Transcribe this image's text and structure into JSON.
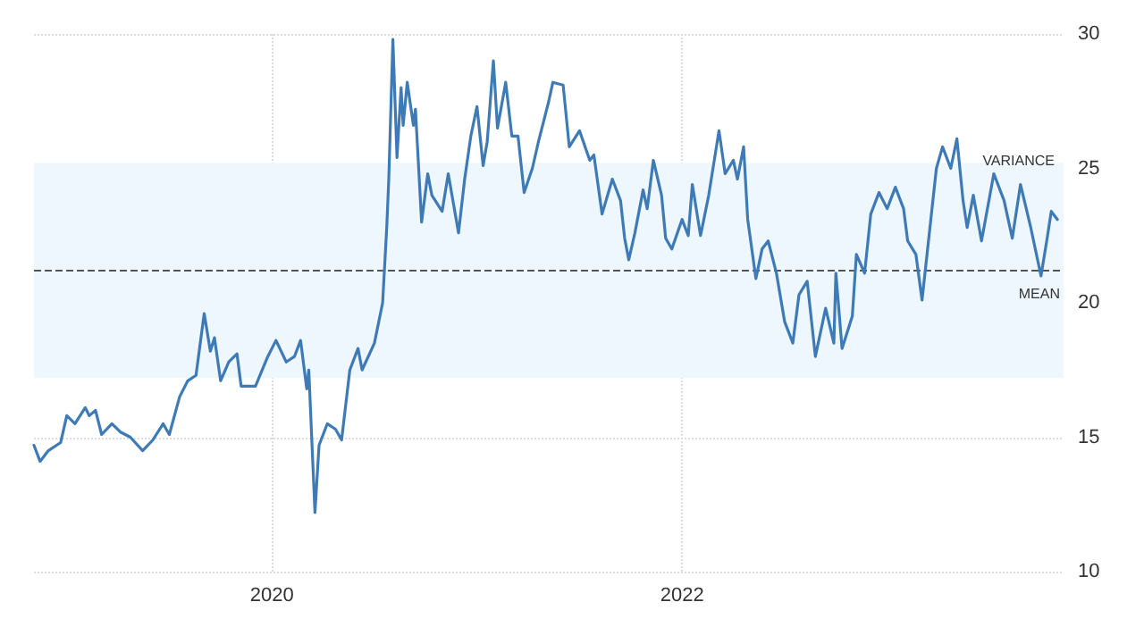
{
  "chart_data": {
    "type": "line",
    "x": [
      2018.84,
      2018.87,
      2018.91,
      2018.97,
      2019.0,
      2019.04,
      2019.09,
      2019.11,
      2019.14,
      2019.17,
      2019.22,
      2019.26,
      2019.31,
      2019.37,
      2019.42,
      2019.47,
      2019.5,
      2019.55,
      2019.59,
      2019.63,
      2019.67,
      2019.7,
      2019.72,
      2019.75,
      2019.79,
      2019.83,
      2019.85,
      2019.92,
      2019.98,
      2020.02,
      2020.07,
      2020.11,
      2020.14,
      2020.17,
      2020.18,
      2020.21,
      2020.23,
      2020.27,
      2020.31,
      2020.34,
      2020.38,
      2020.42,
      2020.44,
      2020.5,
      2020.54,
      2020.56,
      2020.57,
      2020.59,
      2020.61,
      2020.63,
      2020.64,
      2020.66,
      2020.69,
      2020.7,
      2020.73,
      2020.76,
      2020.78,
      2020.83,
      2020.86,
      2020.91,
      2020.94,
      2020.97,
      2021.0,
      2021.03,
      2021.05,
      2021.08,
      2021.1,
      2021.14,
      2021.17,
      2021.2,
      2021.23,
      2021.27,
      2021.3,
      2021.35,
      2021.37,
      2021.42,
      2021.45,
      2021.5,
      2021.55,
      2021.57,
      2021.61,
      2021.66,
      2021.7,
      2021.72,
      2021.74,
      2021.77,
      2021.81,
      2021.83,
      2021.86,
      2021.9,
      2021.92,
      2021.95,
      2022.0,
      2022.03,
      2022.05,
      2022.09,
      2022.13,
      2022.18,
      2022.21,
      2022.25,
      2022.27,
      2022.3,
      2022.32,
      2022.36,
      2022.39,
      2022.42,
      2022.46,
      2022.5,
      2022.54,
      2022.57,
      2022.61,
      2022.65,
      2022.7,
      2022.74,
      2022.75,
      2022.78,
      2022.83,
      2022.85,
      2022.89,
      2022.92,
      2022.96,
      2023.0,
      2023.04,
      2023.08,
      2023.1,
      2023.14,
      2023.17,
      2023.2,
      2023.24,
      2023.27,
      2023.31,
      2023.34,
      2023.37,
      2023.39,
      2023.42,
      2023.46,
      2023.52,
      2023.57,
      2023.61,
      2023.65,
      2023.7,
      2023.75,
      2023.78,
      2023.8,
      2023.83
    ],
    "series": [
      {
        "color": "#3e7bb6",
        "values": [
          14.7,
          14.1,
          14.5,
          14.8,
          15.8,
          15.5,
          16.1,
          15.8,
          16.0,
          15.1,
          15.5,
          15.2,
          15.0,
          14.5,
          14.9,
          15.5,
          15.1,
          16.5,
          17.1,
          17.3,
          19.6,
          18.2,
          18.7,
          17.1,
          17.8,
          18.1,
          16.9,
          16.9,
          18.0,
          18.6,
          17.8,
          18.0,
          18.6,
          16.8,
          17.5,
          12.2,
          14.7,
          15.5,
          15.3,
          14.9,
          17.5,
          18.3,
          17.5,
          18.5,
          20.0,
          22.8,
          24.6,
          29.8,
          25.4,
          28.0,
          26.6,
          28.2,
          26.6,
          27.2,
          23.0,
          24.8,
          24.0,
          23.4,
          24.8,
          22.6,
          24.6,
          26.2,
          27.3,
          25.1,
          26.0,
          29.0,
          26.5,
          28.2,
          26.2,
          26.2,
          24.1,
          25.0,
          26.0,
          27.5,
          28.2,
          28.1,
          25.8,
          26.4,
          25.3,
          25.5,
          23.3,
          24.6,
          23.8,
          22.4,
          21.6,
          22.6,
          24.2,
          23.5,
          25.3,
          24.0,
          22.4,
          22.0,
          23.1,
          22.5,
          24.4,
          22.5,
          24.0,
          26.4,
          24.8,
          25.3,
          24.6,
          25.8,
          23.1,
          20.9,
          22.0,
          22.3,
          21.1,
          19.3,
          18.5,
          20.3,
          20.8,
          18.0,
          19.8,
          18.5,
          21.1,
          18.3,
          19.5,
          21.8,
          21.1,
          23.3,
          24.1,
          23.5,
          24.3,
          23.5,
          22.3,
          21.8,
          20.1,
          22.2,
          25.0,
          25.8,
          25.0,
          26.1,
          23.8,
          22.8,
          24.0,
          22.3,
          24.8,
          23.8,
          22.4,
          24.4,
          22.8,
          21.0,
          22.4,
          23.4,
          23.1
        ]
      }
    ],
    "xlim": [
      2018.84,
      2023.86
    ],
    "xticks": [
      2020,
      2022
    ],
    "ylim": [
      10,
      30
    ],
    "yticks": [
      10,
      15,
      20,
      25,
      30
    ],
    "bands": [
      {
        "axis": "y",
        "from": 17.2,
        "to": 25.2,
        "label": "VARIANCE",
        "color": "#eef6fe"
      }
    ],
    "ref_lines": [
      {
        "axis": "y",
        "value": 21.2,
        "label": "MEAN",
        "color": "#555555",
        "line_style": "dashed"
      }
    ],
    "grid": true,
    "marker": "none",
    "line_style": "solid"
  }
}
